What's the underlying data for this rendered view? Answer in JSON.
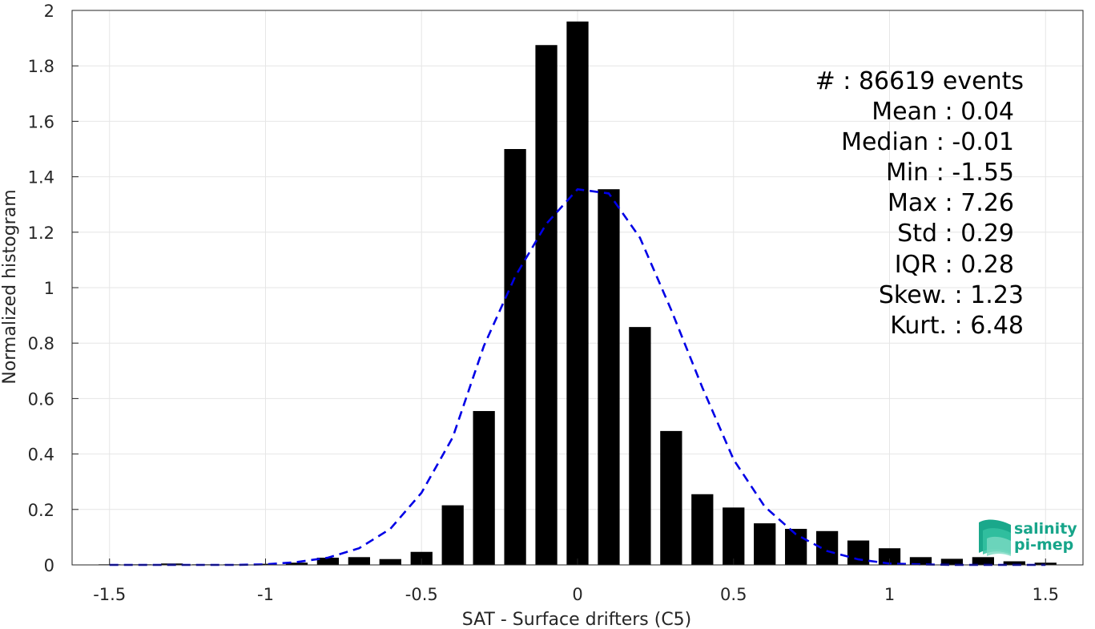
{
  "chart_data": {
    "type": "bar",
    "xlabel": "SAT - Surface drifters (C5)",
    "ylabel": "Normalized histogram",
    "xlim": [
      -1.62,
      1.62
    ],
    "ylim": [
      0,
      2
    ],
    "grid": true,
    "x_ticks": [
      "-1.5",
      "-1",
      "-0.5",
      "0",
      "0.5",
      "1",
      "1.5"
    ],
    "y_ticks": [
      "0",
      "0.2",
      "0.4",
      "0.6",
      "0.8",
      "1",
      "1.2",
      "1.4",
      "1.6",
      "1.8",
      "2"
    ],
    "bar_width": 0.07,
    "histogram": {
      "x": [
        -1.5,
        -1.4,
        -1.3,
        -1.2,
        -1.1,
        -1.0,
        -0.9,
        -0.8,
        -0.7,
        -0.6,
        -0.5,
        -0.4,
        -0.3,
        -0.2,
        -0.1,
        0.0,
        0.1,
        0.2,
        0.3,
        0.4,
        0.5,
        0.6,
        0.7,
        0.8,
        0.9,
        1.0,
        1.1,
        1.2,
        1.3,
        1.4,
        1.5
      ],
      "values": [
        0.002,
        0.002,
        0.005,
        0.002,
        0.002,
        0.004,
        0.008,
        0.026,
        0.028,
        0.021,
        0.047,
        0.215,
        0.555,
        1.5,
        1.875,
        1.96,
        1.355,
        0.858,
        0.483,
        0.255,
        0.207,
        0.15,
        0.13,
        0.122,
        0.088,
        0.06,
        0.028,
        0.022,
        0.028,
        0.013,
        0.008
      ]
    },
    "gaussian_fit": {
      "x": [
        -1.5,
        -1.4,
        -1.3,
        -1.2,
        -1.1,
        -1.0,
        -0.9,
        -0.8,
        -0.7,
        -0.6,
        -0.5,
        -0.4,
        -0.3,
        -0.2,
        -0.1,
        0.0,
        0.1,
        0.2,
        0.3,
        0.4,
        0.5,
        0.6,
        0.7,
        0.8,
        0.9,
        1.0,
        1.1,
        1.2,
        1.3,
        1.4,
        1.5
      ],
      "values": [
        0.0,
        0.0,
        0.0,
        0.0,
        0.0,
        0.002,
        0.01,
        0.026,
        0.06,
        0.13,
        0.26,
        0.46,
        0.79,
        1.04,
        1.23,
        1.355,
        1.34,
        1.18,
        0.92,
        0.64,
        0.38,
        0.21,
        0.11,
        0.05,
        0.02,
        0.005,
        0.002,
        0.0,
        0.0,
        0.0,
        0.0
      ],
      "color": "#0000e6"
    },
    "bar_color": "#000000",
    "stats": [
      {
        "label": "#  : 86619 events"
      },
      {
        "label": "Mean : 0.04"
      },
      {
        "label": "Median : -0.01"
      },
      {
        "label": "Min : -1.55"
      },
      {
        "label": "Max : 7.26"
      },
      {
        "label": "Std : 0.29"
      },
      {
        "label": "IQR : 0.28"
      },
      {
        "label": "Skew. : 1.23"
      },
      {
        "label": "Kurt. : 6.48"
      }
    ]
  },
  "logo": {
    "line1": "salinity",
    "line2": "pi-mep",
    "color": "#17a58a"
  }
}
